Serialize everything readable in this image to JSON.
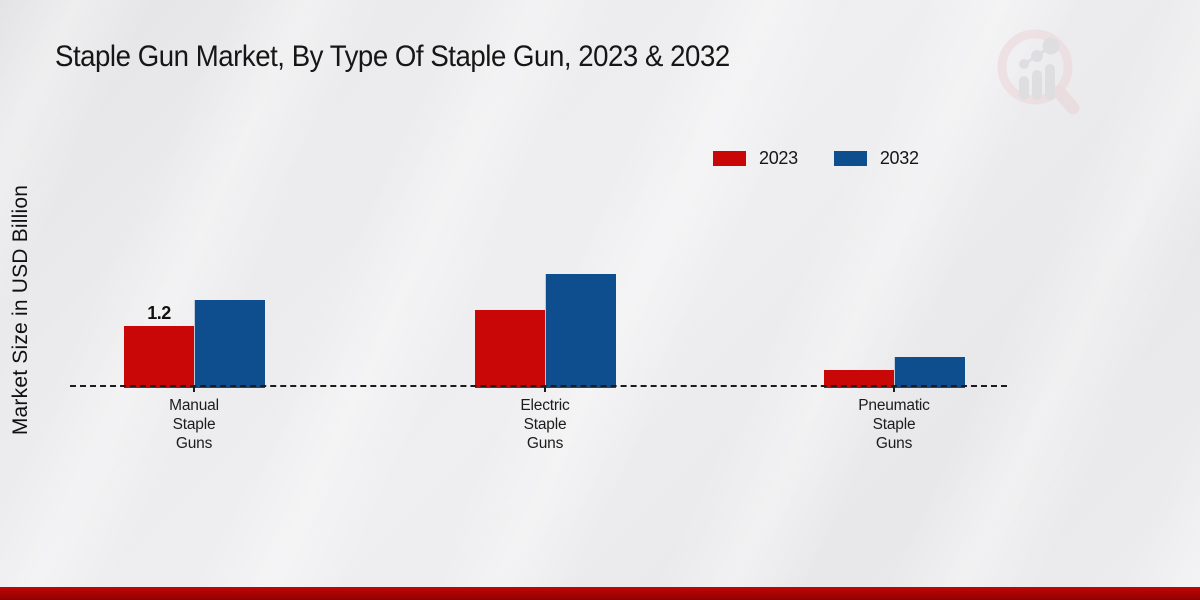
{
  "page": {
    "background_color": "#e9e9eb",
    "accent_bar_color": "#b30404"
  },
  "title": "Staple Gun Market, By Type Of Staple Gun, 2023 & 2032",
  "y_axis_label": "Market Size in USD Billion",
  "watermark_icon": "magnifier-bar-chart-logo",
  "chart_data": {
    "type": "bar",
    "title": "Staple Gun Market, By Type Of Staple Gun, 2023 & 2032",
    "ylabel": "Market Size in USD Billion",
    "xlabel": "",
    "categories": [
      "Manual Staple Guns",
      "Electric Staple Guns",
      "Pneumatic Staple Guns"
    ],
    "series": [
      {
        "name": "2023",
        "color": "#c90707",
        "values": [
          1.2,
          1.5,
          0.35
        ]
      },
      {
        "name": "2032",
        "color": "#0f4e8e",
        "values": [
          1.7,
          2.2,
          0.6
        ]
      }
    ],
    "annotations": [
      {
        "text": "1.2",
        "category_index": 0,
        "series_index": 0
      }
    ],
    "ylim": [
      0,
      2.5
    ],
    "y_ticks_visible": false,
    "grid": false,
    "baseline_style": "dashed",
    "legend_position": "upper-right"
  }
}
